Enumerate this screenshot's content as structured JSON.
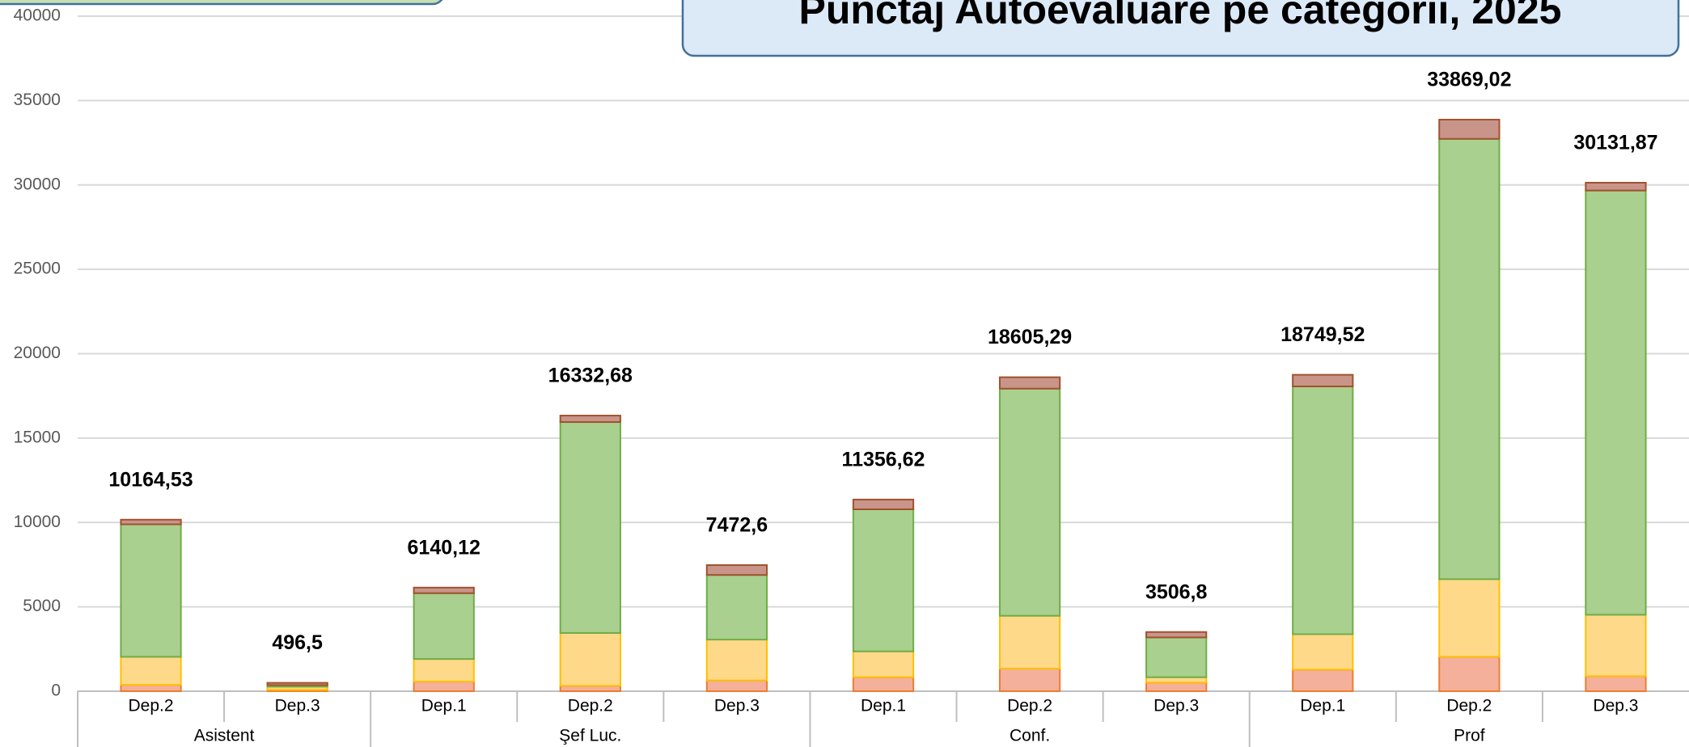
{
  "chart_data": {
    "type": "stacked_bar",
    "title": "Punctaj Autoevaluare pe categorii, 2025",
    "groups": [
      {
        "label": "Asistent",
        "categories": [
          "Dep.2",
          "Dep.3"
        ]
      },
      {
        "label": "Şef Luc.",
        "categories": [
          "Dep.1",
          "Dep.2",
          "Dep.3"
        ]
      },
      {
        "label": "Conf.",
        "categories": [
          "Dep.1",
          "Dep.2",
          "Dep.3"
        ]
      },
      {
        "label": "Prof",
        "categories": [
          "Dep.1",
          "Dep.2",
          "Dep.3"
        ]
      }
    ],
    "series": [
      {
        "color": "#f4b09a",
        "stroke": "#ed7d31",
        "values": [
          380,
          80,
          570,
          320,
          640,
          830,
          1340,
          510,
          1280,
          2040,
          890
        ]
      },
      {
        "color": "#ffd98a",
        "stroke": "#ffc000",
        "values": [
          1660,
          190,
          1340,
          3130,
          2420,
          1530,
          3130,
          320,
          2100,
          4600,
          3640
        ]
      },
      {
        "color": "#a9d08e",
        "stroke": "#70ad47",
        "values": [
          7850,
          90,
          3900,
          12500,
          3830,
          8420,
          13460,
          2360,
          14680,
          26090,
          25140
        ]
      },
      {
        "color": "#c9958a",
        "stroke": "#a0522d",
        "values": [
          274.53,
          136.5,
          330.12,
          382.68,
          582.6,
          576.62,
          675.29,
          316.8,
          689.52,
          1139.02,
          461.87
        ]
      }
    ],
    "totals": [
      10164.53,
      496.5,
      6140.12,
      16332.68,
      7472.6,
      11356.62,
      18605.29,
      3506.8,
      18749.52,
      33869.02,
      30131.87
    ],
    "total_labels": [
      "10164,53",
      "496,5",
      "6140,12",
      "16332,68",
      "7472,6",
      "11356,62",
      "18605,29",
      "3506,8",
      "18749,52",
      "33869,02",
      "30131,87"
    ],
    "ylim": [
      0,
      40000
    ],
    "yticks": [
      0,
      5000,
      10000,
      15000,
      20000,
      25000,
      30000,
      35000,
      40000
    ],
    "grid": true
  }
}
